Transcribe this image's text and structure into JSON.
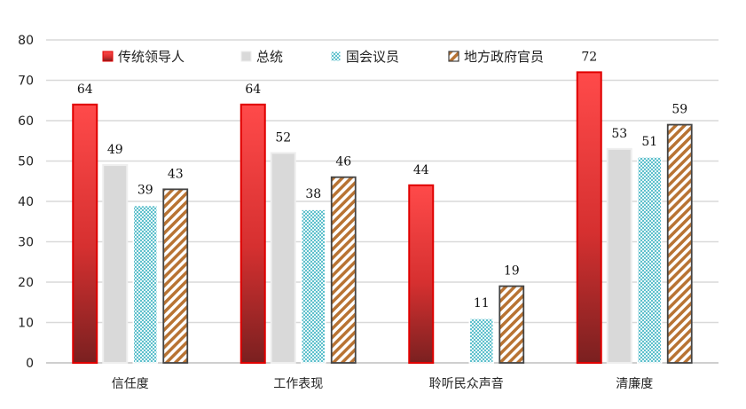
{
  "chart_data": {
    "type": "bar",
    "title": "",
    "xlabel": "",
    "ylabel": "",
    "ylim": [
      0,
      80
    ],
    "yticks": [
      0,
      10,
      20,
      30,
      40,
      50,
      60,
      70,
      80
    ],
    "grid": true,
    "legend_position": "top",
    "categories": [
      "信任度",
      "工作表现",
      "聆听民众声音",
      "清廉度"
    ],
    "series": [
      {
        "name": "传统领导人",
        "values": [
          64,
          64,
          44,
          72
        ],
        "color": "#e03030",
        "labels": [
          "64",
          "64",
          "44",
          "72"
        ]
      },
      {
        "name": "总统",
        "values": [
          49,
          52,
          null,
          53
        ],
        "color": "#d9d9d9",
        "labels": [
          "49",
          "52",
          "",
          "53"
        ]
      },
      {
        "name": "国会议员",
        "values": [
          39,
          38,
          11,
          51
        ],
        "color": "#7fd0d8",
        "labels": [
          "39",
          "38",
          "11",
          "51"
        ]
      },
      {
        "name": "地方政府官员",
        "values": [
          43,
          46,
          19,
          59
        ],
        "color": "#b87333",
        "labels": [
          "43",
          "46",
          "19",
          "59"
        ]
      }
    ]
  }
}
